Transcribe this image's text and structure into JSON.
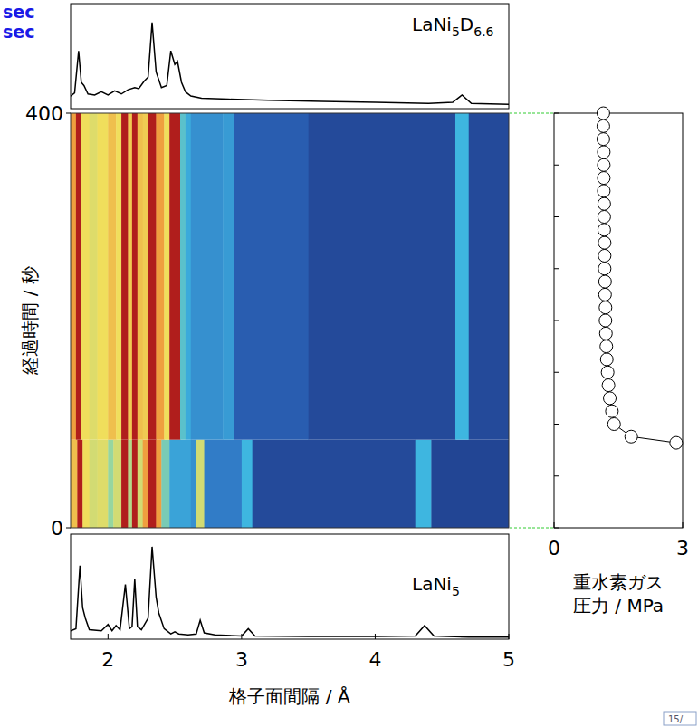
{
  "annotations": [
    "sec",
    "sec"
  ],
  "page_number": "15/",
  "chart_data": [
    {
      "type": "line",
      "title": "LaNi5D6.6",
      "color": "#000000",
      "x": [
        1.72,
        1.75,
        1.78,
        1.8,
        1.82,
        1.85,
        1.9,
        1.95,
        2.0,
        2.05,
        2.1,
        2.15,
        2.2,
        2.23,
        2.27,
        2.3,
        2.33,
        2.36,
        2.4,
        2.44,
        2.47,
        2.5,
        2.52,
        2.55,
        2.58,
        2.62,
        2.7,
        2.9,
        3.2,
        3.6,
        4.0,
        4.4,
        4.58,
        4.65,
        4.72,
        5.0
      ],
      "values": [
        12,
        15,
        55,
        25,
        22,
        14,
        13,
        16,
        13,
        17,
        14,
        18,
        20,
        19,
        26,
        30,
        82,
        35,
        20,
        22,
        55,
        42,
        45,
        25,
        16,
        12,
        10,
        9,
        8,
        7,
        6,
        5,
        6,
        13,
        5,
        4
      ],
      "xlim": [
        1.72,
        5.0
      ],
      "ylim": [
        0,
        100
      ],
      "tick_labels": false
    },
    {
      "type": "heatmap",
      "y_label": "経過時間 / 秒",
      "xlim": [
        1.72,
        5.0
      ],
      "ylim": [
        0,
        400
      ],
      "yticks": [
        0,
        400
      ],
      "tick_labels": "y",
      "color_range": [
        0,
        1
      ],
      "cells": [
        {
          "t0": 0,
          "t1": 85,
          "edges": [
            1.72,
            1.77,
            1.81,
            1.86,
            1.92,
            2.0,
            2.04,
            2.1,
            2.15,
            2.18,
            2.22,
            2.26,
            2.3,
            2.36,
            2.4,
            2.46,
            2.62,
            2.66,
            2.72,
            3.0,
            3.08,
            4.3,
            4.42,
            5.0
          ],
          "values": [
            0.8,
            1.0,
            0.75,
            0.7,
            0.72,
            0.6,
            0.7,
            1.0,
            0.65,
            1.0,
            0.7,
            0.85,
            1.0,
            0.85,
            0.55,
            0.4,
            0.35,
            0.7,
            0.3,
            0.45,
            0.12,
            0.45,
            0.1
          ]
        },
        {
          "t0": 85,
          "t1": 400,
          "edges": [
            1.72,
            1.76,
            1.8,
            1.86,
            1.92,
            2.0,
            2.06,
            2.1,
            2.15,
            2.18,
            2.22,
            2.26,
            2.3,
            2.36,
            2.42,
            2.46,
            2.54,
            2.58,
            2.62,
            2.86,
            2.94,
            3.5,
            4.6,
            4.7,
            5.0
          ],
          "values": [
            0.85,
            1.0,
            0.75,
            0.72,
            0.75,
            0.8,
            0.75,
            1.0,
            0.78,
            1.0,
            0.8,
            0.78,
            1.0,
            0.85,
            0.75,
            1.0,
            0.5,
            0.42,
            0.35,
            0.38,
            0.2,
            0.12,
            0.45,
            0.12
          ]
        }
      ]
    },
    {
      "type": "line",
      "title": "LaNi5",
      "color": "#000000",
      "x": [
        1.72,
        1.76,
        1.79,
        1.81,
        1.83,
        1.86,
        1.95,
        2.0,
        2.03,
        2.06,
        2.09,
        2.13,
        2.16,
        2.18,
        2.2,
        2.22,
        2.25,
        2.3,
        2.33,
        2.36,
        2.38,
        2.42,
        2.47,
        2.5,
        2.53,
        2.6,
        2.66,
        2.69,
        2.72,
        2.8,
        3.0,
        3.05,
        3.1,
        3.5,
        4.0,
        4.3,
        4.37,
        4.44,
        4.7,
        5.0
      ],
      "values": [
        8,
        10,
        70,
        30,
        20,
        9,
        8,
        14,
        8,
        13,
        9,
        52,
        10,
        12,
        57,
        12,
        9,
        20,
        88,
        40,
        25,
        10,
        5,
        7,
        5,
        4,
        5,
        18,
        6,
        4,
        3,
        10,
        3,
        2.5,
        2.5,
        3,
        13,
        3,
        2,
        2
      ],
      "xlim": [
        1.72,
        5.0
      ],
      "ylim": [
        0,
        100
      ],
      "xticks": [
        2,
        3,
        4,
        5
      ],
      "x_label": "格子面間隔 / Å",
      "tick_labels": "x"
    },
    {
      "type": "scatter",
      "marker": "circle",
      "line_style": "solid",
      "color": "#000000",
      "x": [
        2.85,
        1.8,
        1.4,
        1.35,
        1.3,
        1.27,
        1.25,
        1.23,
        1.22,
        1.21,
        1.2,
        1.2,
        1.19,
        1.19,
        1.18,
        1.18,
        1.18,
        1.17,
        1.17,
        1.17,
        1.16,
        1.16,
        1.16,
        1.16,
        1.15,
        1.15,
        1.15
      ],
      "values": [
        82,
        88,
        100,
        112.5,
        125,
        137.5,
        150,
        162.5,
        175,
        187.5,
        200,
        212.5,
        225,
        237.5,
        250,
        262.5,
        275,
        287.5,
        300,
        312.5,
        325,
        337.5,
        350,
        362.5,
        375,
        387.5,
        400
      ],
      "xlim": [
        0,
        3
      ],
      "ylim": [
        0,
        400
      ],
      "xticks": [
        0,
        3
      ],
      "yticks": [
        0,
        50,
        100,
        150,
        200,
        250,
        300,
        350,
        400
      ],
      "x_label": [
        "重水素ガス",
        "圧力 / MPa"
      ],
      "tick_labels": "x"
    }
  ]
}
